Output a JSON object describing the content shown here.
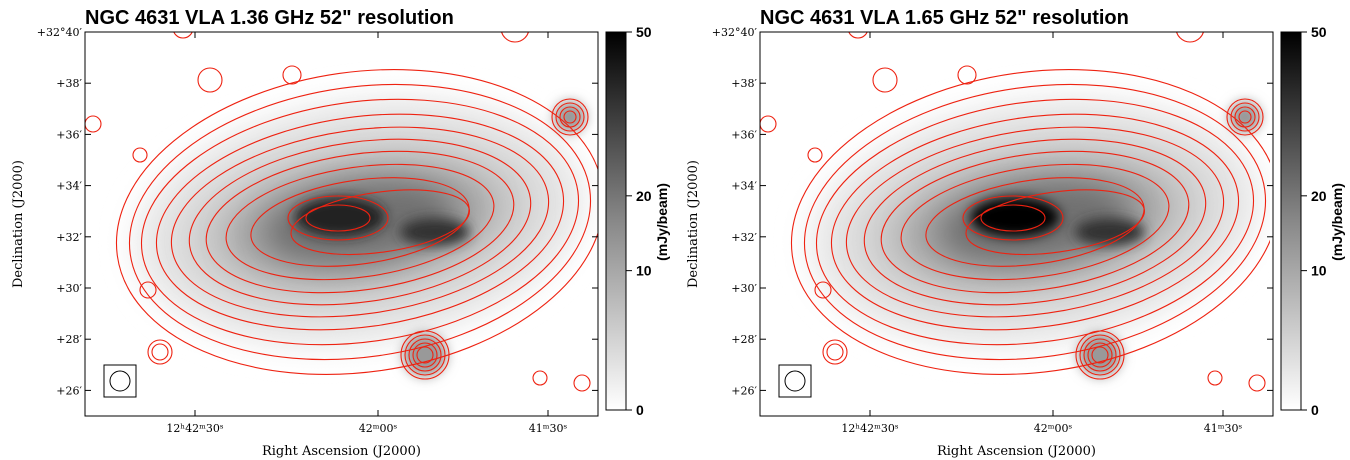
{
  "panels": [
    {
      "title": "NGC 4631 VLA 1.36 GHz 52\" resolution",
      "xlabel": "Right Ascension (J2000)",
      "ylabel": "Declination (J2000)",
      "colorbar_label": "(mJy/beam)",
      "dec_ticks": [
        "+32°40′",
        "+38′",
        "+36′",
        "+34′",
        "+32′",
        "+30′",
        "+28′",
        "+26′"
      ],
      "ra_ticks": [
        "12ʰ42ᵐ30ˢ",
        "42ᵐ00ˢ",
        "41ᵐ30ˢ"
      ],
      "colorbar_lim": [
        0,
        50
      ],
      "colorbar_ticks": [
        0,
        10,
        20,
        50
      ]
    },
    {
      "title": "NGC 4631 VLA 1.65 GHz 52\" resolution",
      "xlabel": "Right Ascension (J2000)",
      "ylabel": "Declination (J2000)",
      "colorbar_label": "(mJy/beam)",
      "dec_ticks": [
        "+32°40′",
        "+38′",
        "+36′",
        "+34′",
        "+32′",
        "+30′",
        "+28′",
        "+26′"
      ],
      "ra_ticks": [
        "12ʰ42ᵐ30ˢ",
        "42ᵐ00ˢ",
        "41ᵐ30ˢ"
      ],
      "colorbar_lim": [
        0,
        50
      ],
      "colorbar_ticks": [
        0,
        10,
        20,
        50
      ]
    }
  ]
}
